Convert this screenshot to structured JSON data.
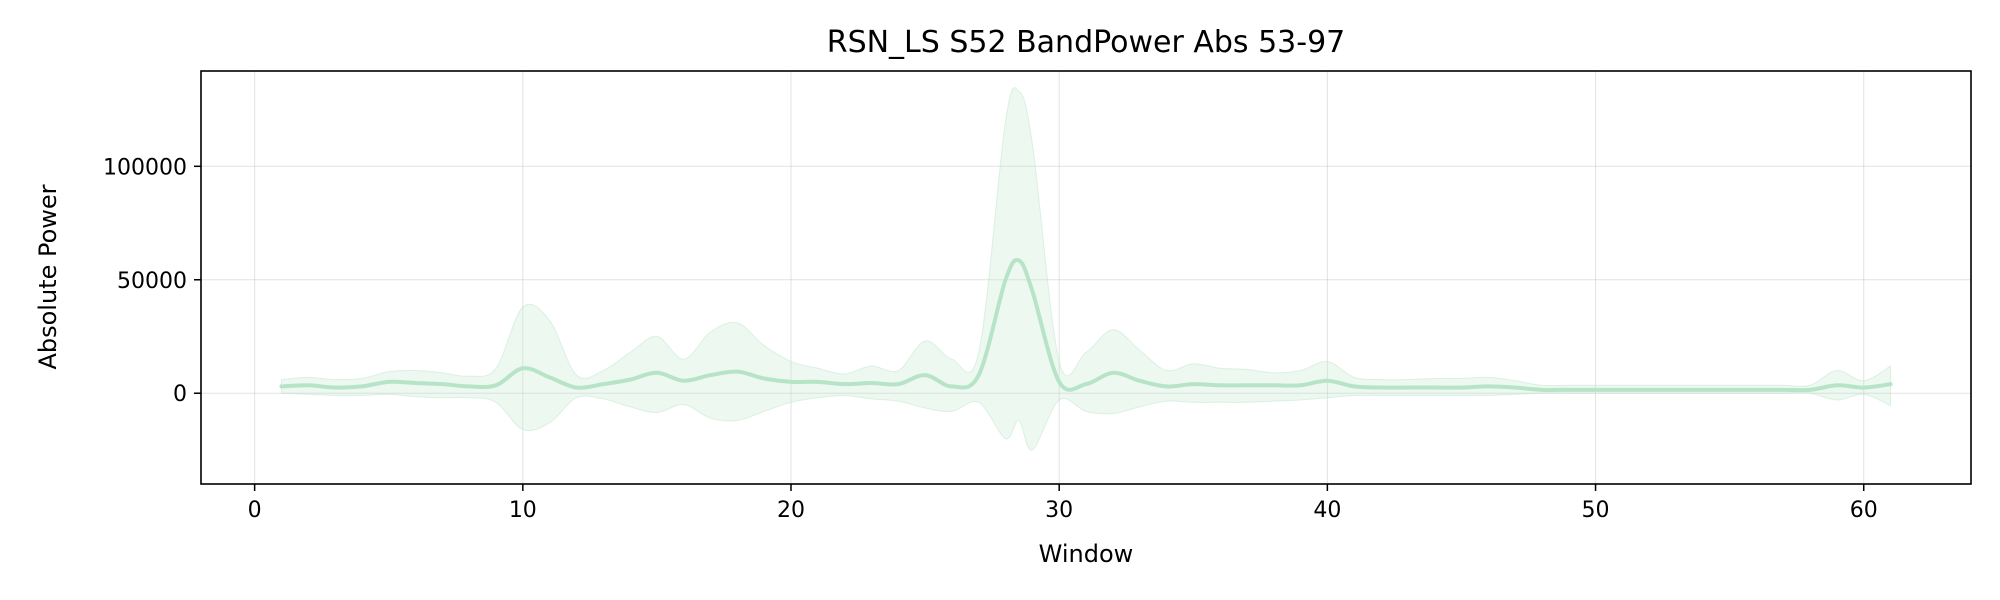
{
  "chart_data": {
    "type": "line",
    "title": "RSN_LS S52 BandPower Abs 53-97",
    "xlabel": "Window",
    "ylabel": "Absolute Power",
    "xlim": [
      -2,
      64
    ],
    "ylim": [
      -40000,
      142000
    ],
    "xticks": [
      0,
      10,
      20,
      30,
      40,
      50,
      60
    ],
    "yticks": [
      0,
      50000,
      100000
    ],
    "xtick_labels": [
      "0",
      "10",
      "20",
      "30",
      "40",
      "50",
      "60"
    ],
    "ytick_labels": [
      "0",
      "50000",
      "100000"
    ],
    "grid": true,
    "colors": {
      "line": "#b7e4c7",
      "band": "#b7e4c7"
    },
    "series": [
      {
        "x": [
          1,
          2,
          3,
          4,
          5,
          6,
          7,
          8,
          9,
          10,
          11,
          12,
          13,
          14,
          15,
          16,
          17,
          18,
          19,
          20,
          21,
          22,
          23,
          24,
          25,
          26,
          27,
          28,
          28.5,
          29,
          30,
          31,
          32,
          33,
          34,
          35,
          36,
          37,
          38,
          39,
          40,
          41,
          42,
          43,
          44,
          45,
          46,
          47,
          48,
          49,
          50,
          51,
          52,
          53,
          54,
          55,
          56,
          57,
          58,
          59,
          60,
          61
        ],
        "mean": [
          3000,
          3500,
          2500,
          3000,
          5000,
          4500,
          4000,
          3000,
          3500,
          11000,
          7000,
          2500,
          4000,
          6000,
          9000,
          5500,
          8000,
          9500,
          6500,
          5000,
          5000,
          4000,
          4500,
          4000,
          8000,
          3000,
          8000,
          50000,
          58500,
          45000,
          5000,
          4000,
          9000,
          5500,
          3000,
          4000,
          3500,
          3500,
          3500,
          3500,
          5500,
          3000,
          2500,
          2500,
          2500,
          2500,
          3000,
          2500,
          1500,
          1500,
          1500,
          1500,
          1500,
          1500,
          1500,
          1500,
          1500,
          1500,
          1500,
          3500,
          2500,
          4000
        ],
        "upper": [
          6000,
          7000,
          6000,
          6500,
          9500,
          10000,
          9000,
          7500,
          11000,
          38000,
          32000,
          8000,
          10000,
          18000,
          25000,
          15000,
          27000,
          31000,
          21000,
          14000,
          11000,
          8500,
          12000,
          10000,
          23000,
          15000,
          18000,
          120000,
          133000,
          110000,
          14000,
          18000,
          28000,
          19000,
          10000,
          13000,
          11000,
          10500,
          9000,
          10000,
          14000,
          7000,
          6000,
          6000,
          6500,
          6500,
          7000,
          5500,
          3500,
          3500,
          3500,
          3500,
          3500,
          3500,
          3500,
          3500,
          3500,
          3500,
          3500,
          10000,
          5500,
          12000
        ],
        "lower": [
          0,
          -500,
          -1000,
          -1000,
          -500,
          -1500,
          -2000,
          -2000,
          -4000,
          -16000,
          -13000,
          -2000,
          -2500,
          -6000,
          -8500,
          -5000,
          -11000,
          -12000,
          -8000,
          -4000,
          -2000,
          -1000,
          -2500,
          -3500,
          -6500,
          -8000,
          -4000,
          -20000,
          -12000,
          -25000,
          -3000,
          -8000,
          -9000,
          -6000,
          -3500,
          -4000,
          -4000,
          -4000,
          -3500,
          -3000,
          -2000,
          -1000,
          -1000,
          -1000,
          -1000,
          -1000,
          -1000,
          -500,
          0,
          0,
          0,
          0,
          0,
          0,
          0,
          0,
          0,
          0,
          0,
          -3000,
          -500,
          -5500
        ]
      }
    ]
  }
}
